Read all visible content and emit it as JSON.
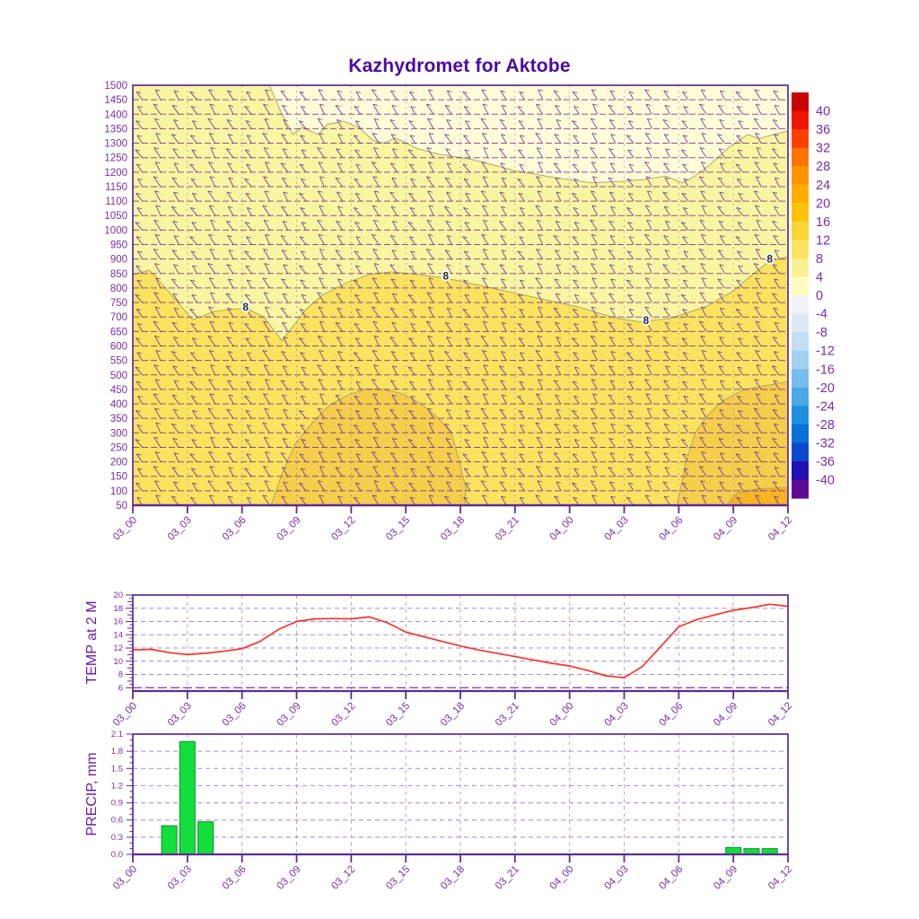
{
  "title": "Kazhydromet for Aktobe",
  "palette": {
    "frame": "#5e2b93",
    "tick_text": "#7a2ea8",
    "title_text": "#4b0aa0",
    "axis_title_text": "#6b1cad",
    "grid_dash": "#a68bd0",
    "level_line": "#6c2c96",
    "barb": "#6b2f9b",
    "contour_line": "#a8a060",
    "contour_label_text": "#2a2a2a",
    "temp_line": "#f8352b",
    "precip_fill": "#12de3c",
    "precip_stroke": "#0e8f26"
  },
  "time_axis": {
    "labels": [
      "03_00",
      "03_03",
      "03_06",
      "03_09",
      "03_12",
      "03_15",
      "03_18",
      "03_21",
      "04_00",
      "04_03",
      "04_06",
      "04_09",
      "04_12"
    ],
    "span_hours": 36,
    "tick_every_hours": 3
  },
  "chart_data": [
    {
      "type": "heatmap",
      "name": "temperature-height-profile-with-wind-barbs",
      "x_unit": "time (DD_HH)",
      "y_unit": "level",
      "y_ticks": [
        1500,
        1450,
        1400,
        1350,
        1300,
        1250,
        1200,
        1150,
        1100,
        1050,
        1000,
        950,
        900,
        850,
        800,
        750,
        700,
        650,
        600,
        550,
        500,
        450,
        400,
        350,
        300,
        250,
        200,
        150,
        100,
        50
      ],
      "background_band": {
        "range_c": "4..8",
        "color": "#faf5a0"
      },
      "bands": [
        {
          "range_c": "0..4",
          "color": "#fffcd8",
          "points_h_level": [
            [
              7.5,
              1500
            ],
            [
              8.3,
              1385
            ],
            [
              8.8,
              1330
            ],
            [
              9.3,
              1355
            ],
            [
              10.2,
              1330
            ],
            [
              10.7,
              1365
            ],
            [
              11.6,
              1375
            ],
            [
              12.4,
              1355
            ],
            [
              13.2,
              1310
            ],
            [
              13.8,
              1300
            ],
            [
              14.4,
              1318
            ],
            [
              15.0,
              1302
            ],
            [
              15.6,
              1282
            ],
            [
              16.8,
              1262
            ],
            [
              18.7,
              1243
            ],
            [
              21.0,
              1205
            ],
            [
              23.0,
              1183
            ],
            [
              25.2,
              1163
            ],
            [
              26.8,
              1168
            ],
            [
              28.0,
              1174
            ],
            [
              29.3,
              1186
            ],
            [
              30.2,
              1163
            ],
            [
              30.8,
              1183
            ],
            [
              31.7,
              1225
            ],
            [
              32.8,
              1288
            ],
            [
              33.8,
              1330
            ],
            [
              34.4,
              1316
            ],
            [
              35.2,
              1330
            ],
            [
              36,
              1342
            ],
            [
              36,
              1500
            ]
          ]
        },
        {
          "range_c": "8..12",
          "color": "#fbe35f",
          "points_h_level": [
            [
              0,
              845
            ],
            [
              0.9,
              862
            ],
            [
              1.8,
              800
            ],
            [
              3.3,
              690
            ],
            [
              4.5,
              720
            ],
            [
              6.2,
              731
            ],
            [
              7.2,
              700
            ],
            [
              8.2,
              618
            ],
            [
              9.5,
              725
            ],
            [
              10.4,
              775
            ],
            [
              11.8,
              820
            ],
            [
              13.1,
              848
            ],
            [
              14.2,
              856
            ],
            [
              15.5,
              848
            ],
            [
              17.2,
              834
            ],
            [
              19.6,
              802
            ],
            [
              22.2,
              766
            ],
            [
              24.4,
              736
            ],
            [
              26.6,
              695
            ],
            [
              27.8,
              684
            ],
            [
              29.5,
              694
            ],
            [
              31.5,
              736
            ],
            [
              33.0,
              790
            ],
            [
              34.3,
              860
            ],
            [
              35.0,
              892
            ],
            [
              36,
              908
            ],
            [
              36,
              50
            ],
            [
              0,
              50
            ]
          ]
        },
        {
          "range_c": "12..16",
          "color": "#f7cd4c",
          "points_h_level": [
            [
              7.6,
              50
            ],
            [
              8.2,
              160
            ],
            [
              8.9,
              260
            ],
            [
              9.8,
              330
            ],
            [
              10.8,
              395
            ],
            [
              11.8,
              430
            ],
            [
              12.8,
              452
            ],
            [
              13.8,
              450
            ],
            [
              14.8,
              435
            ],
            [
              15.8,
              402
            ],
            [
              16.8,
              350
            ],
            [
              17.5,
              300
            ],
            [
              17.9,
              210
            ],
            [
              18.3,
              110
            ],
            [
              18.25,
              50
            ]
          ]
        },
        {
          "range_c": "12..16",
          "color": "#f7cd4c",
          "points_h_level": [
            [
              29.9,
              50
            ],
            [
              30.4,
              200
            ],
            [
              30.9,
              300
            ],
            [
              31.5,
              355
            ],
            [
              32.4,
              410
            ],
            [
              33.6,
              450
            ],
            [
              34.7,
              462
            ],
            [
              36,
              477
            ],
            [
              36,
              50
            ]
          ]
        },
        {
          "range_c": "16..20",
          "color": "#f5b525",
          "points_h_level": [
            [
              32.6,
              50
            ],
            [
              33.2,
              92
            ],
            [
              34.3,
              107
            ],
            [
              36,
              111
            ],
            [
              36,
              50
            ]
          ]
        }
      ],
      "contour_labels": [
        {
          "text": "8",
          "h": 6.2,
          "level": 735
        },
        {
          "text": "8",
          "h": 17.2,
          "level": 842
        },
        {
          "text": "8",
          "h": 28.2,
          "level": 688
        },
        {
          "text": "8",
          "h": 35.0,
          "level": 900
        }
      ],
      "wind_barbs": {
        "rows": 30,
        "cols": 36,
        "note": "hourly wind barbs at each level"
      },
      "colorbar": {
        "tick_labels": [
          "40",
          "36",
          "32",
          "28",
          "24",
          "20",
          "16",
          "12",
          "8",
          "4",
          "0",
          "-4",
          "-8",
          "-12",
          "-16",
          "-20",
          "-24",
          "-28",
          "-32",
          "-36",
          "-40"
        ],
        "segment_colors": [
          "#c80400",
          "#ee1600",
          "#ff4000",
          "#ff7300",
          "#ff9400",
          "#ffae00",
          "#fcc30a",
          "#fdd434",
          "#fee262",
          "#fdef92",
          "#fefac0",
          "#eef3fa",
          "#dceaf8",
          "#c2dff6",
          "#a2d1f2",
          "#78beec",
          "#4aa8e6",
          "#2090de",
          "#0870d6",
          "#0a48ce",
          "#2012b2",
          "#5e0a94"
        ]
      }
    },
    {
      "type": "line",
      "name": "TEMP at 2 M",
      "ylim": [
        6,
        20
      ],
      "y_tick_labels": [
        "20",
        "18",
        "16",
        "14",
        "12",
        "10",
        "8",
        "6"
      ],
      "x_step_hours": 1,
      "values": [
        11.7,
        11.8,
        11.3,
        11.0,
        11.2,
        11.5,
        11.9,
        13.0,
        14.8,
        16.0,
        16.4,
        16.45,
        16.4,
        16.7,
        15.8,
        14.4,
        13.7,
        13.0,
        12.3,
        11.7,
        11.2,
        10.7,
        10.2,
        9.7,
        9.3,
        8.6,
        7.8,
        7.5,
        9.2,
        12.2,
        15.2,
        16.3,
        17.0,
        17.7,
        18.1,
        18.6,
        18.3
      ]
    },
    {
      "type": "bar",
      "name": "PRECIP, mm",
      "ylim": [
        0,
        2.1
      ],
      "y_tick_labels": [
        "2.1",
        "1.8",
        "1.5",
        "1.2",
        "0.9",
        "0.6",
        "0.3",
        "0.0"
      ],
      "bars": [
        {
          "time": "03_02",
          "hour_offset": 2,
          "value": 0.5
        },
        {
          "time": "03_03",
          "hour_offset": 3,
          "value": 1.97
        },
        {
          "time": "03_04",
          "hour_offset": 4,
          "value": 0.57
        },
        {
          "time": "04_09",
          "hour_offset": 33,
          "value": 0.12
        },
        {
          "time": "04_10",
          "hour_offset": 34,
          "value": 0.1
        },
        {
          "time": "04_11",
          "hour_offset": 35,
          "value": 0.1
        }
      ]
    }
  ]
}
